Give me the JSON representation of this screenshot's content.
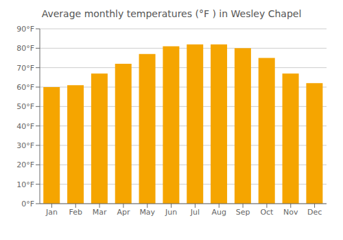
{
  "chart_data": {
    "type": "bar",
    "title": "Average monthly temperatures (°F ) in Wesley Chapel",
    "categories": [
      "Jan",
      "Feb",
      "Mar",
      "Apr",
      "May",
      "Jun",
      "Jul",
      "Aug",
      "Sep",
      "Oct",
      "Nov",
      "Dec"
    ],
    "values": [
      60,
      61,
      67,
      72,
      77,
      81,
      82,
      82,
      80,
      75,
      67,
      62
    ],
    "color": "#F5A500",
    "ylim": [
      0,
      90
    ],
    "yticks": [
      {
        "value": 0,
        "label": "0°F"
      },
      {
        "value": 10,
        "label": "10°F"
      },
      {
        "value": 20,
        "label": "20°F"
      },
      {
        "value": 30,
        "label": "30°F"
      },
      {
        "value": 40,
        "label": "40°F"
      },
      {
        "value": 50,
        "label": "50°F"
      },
      {
        "value": 60,
        "label": "60°F"
      },
      {
        "value": 70,
        "label": "70°F"
      },
      {
        "value": 80,
        "label": "80°F"
      },
      {
        "value": 90,
        "label": "90°F"
      }
    ],
    "grid": true
  }
}
